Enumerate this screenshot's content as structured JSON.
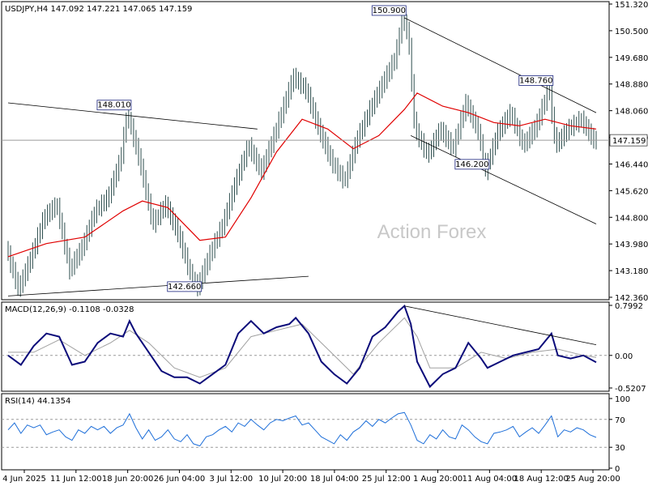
{
  "chart_data": {
    "type": "candlestick",
    "symbol": "USDJPY,H4",
    "ohlc_header": "147.092 147.221 147.065 147.159",
    "watermark": "Action Forex",
    "last_price": 147.159,
    "last_price_label": "147.159",
    "price_axis": {
      "ylim": [
        142.36,
        151.32
      ],
      "ticks": [
        "151.320",
        "150.500",
        "149.680",
        "148.880",
        "148.060",
        "147.240",
        "146.440",
        "145.620",
        "144.800",
        "143.980",
        "143.180",
        "142.360"
      ]
    },
    "x_labels": [
      "4 Jun 2025",
      "11 Jun 12:00",
      "18 Jun 20:00",
      "26 Jun 04:00",
      "3 Jul 12:00",
      "10 Jul 20:00",
      "18 Jul 04:00",
      "25 Jul 12:00",
      "1 Aug 20:00",
      "11 Aug 04:00",
      "18 Aug 12:00",
      "25 Aug 20:00"
    ],
    "price_path": [
      [
        0,
        143.9
      ],
      [
        2,
        142.6
      ],
      [
        4,
        143.6
      ],
      [
        6,
        144.8
      ],
      [
        8,
        145.2
      ],
      [
        10,
        143.2
      ],
      [
        12,
        143.9
      ],
      [
        14,
        145.0
      ],
      [
        16,
        145.4
      ],
      [
        18,
        146.6
      ],
      [
        19,
        148.01
      ],
      [
        21,
        146.5
      ],
      [
        23,
        144.6
      ],
      [
        25,
        145.2
      ],
      [
        27,
        144.3
      ],
      [
        29,
        143.0
      ],
      [
        30,
        142.66
      ],
      [
        32,
        143.7
      ],
      [
        34,
        144.6
      ],
      [
        36,
        145.9
      ],
      [
        38,
        147.0
      ],
      [
        40,
        146.2
      ],
      [
        42,
        147.3
      ],
      [
        44,
        148.5
      ],
      [
        45,
        149.1
      ],
      [
        47,
        148.7
      ],
      [
        49,
        147.5
      ],
      [
        51,
        146.5
      ],
      [
        53,
        145.9
      ],
      [
        55,
        147.2
      ],
      [
        57,
        148.1
      ],
      [
        59,
        148.9
      ],
      [
        61,
        149.7
      ],
      [
        62,
        150.9
      ],
      [
        63,
        150.4
      ],
      [
        64,
        147.5
      ],
      [
        66,
        146.7
      ],
      [
        68,
        147.5
      ],
      [
        70,
        146.9
      ],
      [
        72,
        148.3
      ],
      [
        74,
        147.4
      ],
      [
        75,
        146.2
      ],
      [
        77,
        147.4
      ],
      [
        79,
        148.0
      ],
      [
        81,
        147.0
      ],
      [
        83,
        147.6
      ],
      [
        85,
        148.76
      ],
      [
        86,
        147.0
      ],
      [
        88,
        147.5
      ],
      [
        90,
        147.8
      ],
      [
        92,
        147.159
      ]
    ],
    "ma_path": [
      [
        0,
        143.6
      ],
      [
        6,
        144.0
      ],
      [
        12,
        144.2
      ],
      [
        18,
        145.0
      ],
      [
        21,
        145.3
      ],
      [
        25,
        145.1
      ],
      [
        30,
        144.1
      ],
      [
        34,
        144.2
      ],
      [
        38,
        145.4
      ],
      [
        42,
        146.8
      ],
      [
        46,
        147.8
      ],
      [
        50,
        147.5
      ],
      [
        54,
        146.9
      ],
      [
        58,
        147.3
      ],
      [
        62,
        148.1
      ],
      [
        64,
        148.6
      ],
      [
        68,
        148.2
      ],
      [
        72,
        148.0
      ],
      [
        76,
        147.7
      ],
      [
        80,
        147.6
      ],
      [
        84,
        147.8
      ],
      [
        88,
        147.6
      ],
      [
        92,
        147.5
      ]
    ],
    "annotations": [
      {
        "label": "148.010",
        "price": 148.01,
        "i": 19
      },
      {
        "label": "142.660",
        "price": 142.66,
        "i": 30
      },
      {
        "label": "150.900",
        "price": 150.9,
        "i": 62
      },
      {
        "label": "146.200",
        "price": 146.2,
        "i": 75
      },
      {
        "label": "148.760",
        "price": 148.76,
        "i": 85
      }
    ],
    "trendlines": [
      {
        "from": [
          0,
          148.3
        ],
        "to": [
          39,
          147.5
        ]
      },
      {
        "from": [
          0,
          142.4
        ],
        "to": [
          47,
          143.0
        ]
      },
      {
        "from": [
          62,
          150.9
        ],
        "to": [
          92,
          148.0
        ]
      },
      {
        "from": [
          63,
          147.3
        ],
        "to": [
          92,
          144.6
        ]
      }
    ],
    "macd": {
      "label": "MACD(12,26,9) -0.1108 -0.0328",
      "ylim": [
        -0.5207,
        0.7992
      ],
      "ticks": [
        "0.7992",
        "0.00",
        "-0.5207"
      ],
      "main_path": [
        [
          0,
          0.0
        ],
        [
          2,
          -0.15
        ],
        [
          4,
          0.15
        ],
        [
          6,
          0.35
        ],
        [
          8,
          0.3
        ],
        [
          10,
          -0.15
        ],
        [
          12,
          -0.1
        ],
        [
          14,
          0.2
        ],
        [
          16,
          0.35
        ],
        [
          18,
          0.3
        ],
        [
          19,
          0.55
        ],
        [
          20,
          0.35
        ],
        [
          22,
          0.05
        ],
        [
          24,
          -0.25
        ],
        [
          26,
          -0.35
        ],
        [
          28,
          -0.35
        ],
        [
          30,
          -0.45
        ],
        [
          32,
          -0.3
        ],
        [
          34,
          -0.15
        ],
        [
          36,
          0.35
        ],
        [
          38,
          0.55
        ],
        [
          40,
          0.35
        ],
        [
          42,
          0.45
        ],
        [
          44,
          0.5
        ],
        [
          45,
          0.6
        ],
        [
          47,
          0.35
        ],
        [
          49,
          -0.1
        ],
        [
          51,
          -0.3
        ],
        [
          53,
          -0.45
        ],
        [
          55,
          -0.2
        ],
        [
          57,
          0.3
        ],
        [
          59,
          0.45
        ],
        [
          61,
          0.7
        ],
        [
          62,
          0.79
        ],
        [
          63,
          0.5
        ],
        [
          64,
          -0.1
        ],
        [
          66,
          -0.5
        ],
        [
          68,
          -0.3
        ],
        [
          70,
          -0.2
        ],
        [
          72,
          0.2
        ],
        [
          74,
          -0.05
        ],
        [
          75,
          -0.2
        ],
        [
          77,
          -0.1
        ],
        [
          79,
          0.0
        ],
        [
          81,
          0.05
        ],
        [
          83,
          0.1
        ],
        [
          85,
          0.35
        ],
        [
          86,
          0.0
        ],
        [
          88,
          -0.05
        ],
        [
          90,
          0.0
        ],
        [
          92,
          -0.1108
        ]
      ],
      "signal_path": [
        [
          0,
          0.05
        ],
        [
          4,
          0.05
        ],
        [
          8,
          0.25
        ],
        [
          12,
          0.0
        ],
        [
          16,
          0.2
        ],
        [
          19,
          0.4
        ],
        [
          22,
          0.2
        ],
        [
          26,
          -0.2
        ],
        [
          30,
          -0.35
        ],
        [
          34,
          -0.2
        ],
        [
          38,
          0.3
        ],
        [
          42,
          0.4
        ],
        [
          46,
          0.5
        ],
        [
          50,
          0.1
        ],
        [
          54,
          -0.3
        ],
        [
          58,
          0.2
        ],
        [
          62,
          0.6
        ],
        [
          64,
          0.3
        ],
        [
          66,
          -0.2
        ],
        [
          70,
          -0.2
        ],
        [
          74,
          0.05
        ],
        [
          78,
          -0.05
        ],
        [
          82,
          0.05
        ],
        [
          86,
          0.1
        ],
        [
          90,
          0.0
        ],
        [
          92,
          -0.0328
        ]
      ],
      "trendline": {
        "from": [
          62,
          0.79
        ],
        "to": [
          92,
          0.17
        ]
      }
    },
    "rsi": {
      "label": "RSI(14) 44.1354",
      "ylim": [
        0,
        100
      ],
      "ticks": [
        "100",
        "70",
        "30",
        "0"
      ],
      "levels": [
        70,
        30
      ],
      "path": [
        [
          0,
          55
        ],
        [
          1,
          65
        ],
        [
          2,
          50
        ],
        [
          3,
          62
        ],
        [
          4,
          58
        ],
        [
          5,
          62
        ],
        [
          6,
          48
        ],
        [
          7,
          52
        ],
        [
          8,
          55
        ],
        [
          9,
          45
        ],
        [
          10,
          40
        ],
        [
          11,
          55
        ],
        [
          12,
          50
        ],
        [
          13,
          60
        ],
        [
          14,
          55
        ],
        [
          15,
          60
        ],
        [
          16,
          50
        ],
        [
          17,
          58
        ],
        [
          18,
          62
        ],
        [
          19,
          78
        ],
        [
          20,
          58
        ],
        [
          21,
          42
        ],
        [
          22,
          55
        ],
        [
          23,
          40
        ],
        [
          24,
          45
        ],
        [
          25,
          55
        ],
        [
          26,
          42
        ],
        [
          27,
          38
        ],
        [
          28,
          48
        ],
        [
          29,
          35
        ],
        [
          30,
          32
        ],
        [
          31,
          45
        ],
        [
          32,
          48
        ],
        [
          33,
          55
        ],
        [
          34,
          60
        ],
        [
          35,
          52
        ],
        [
          36,
          65
        ],
        [
          37,
          60
        ],
        [
          38,
          70
        ],
        [
          39,
          62
        ],
        [
          40,
          55
        ],
        [
          41,
          65
        ],
        [
          42,
          70
        ],
        [
          43,
          68
        ],
        [
          44,
          72
        ],
        [
          45,
          75
        ],
        [
          46,
          62
        ],
        [
          47,
          65
        ],
        [
          48,
          55
        ],
        [
          49,
          45
        ],
        [
          50,
          40
        ],
        [
          51,
          35
        ],
        [
          52,
          48
        ],
        [
          53,
          40
        ],
        [
          54,
          52
        ],
        [
          55,
          58
        ],
        [
          56,
          68
        ],
        [
          57,
          60
        ],
        [
          58,
          70
        ],
        [
          59,
          65
        ],
        [
          60,
          72
        ],
        [
          61,
          78
        ],
        [
          62,
          80
        ],
        [
          63,
          62
        ],
        [
          64,
          40
        ],
        [
          65,
          35
        ],
        [
          66,
          48
        ],
        [
          67,
          42
        ],
        [
          68,
          55
        ],
        [
          69,
          45
        ],
        [
          70,
          42
        ],
        [
          71,
          62
        ],
        [
          72,
          55
        ],
        [
          73,
          45
        ],
        [
          74,
          38
        ],
        [
          75,
          35
        ],
        [
          76,
          50
        ],
        [
          77,
          52
        ],
        [
          78,
          55
        ],
        [
          79,
          60
        ],
        [
          80,
          45
        ],
        [
          81,
          52
        ],
        [
          82,
          58
        ],
        [
          83,
          50
        ],
        [
          84,
          62
        ],
        [
          85,
          75
        ],
        [
          86,
          45
        ],
        [
          87,
          55
        ],
        [
          88,
          52
        ],
        [
          89,
          58
        ],
        [
          90,
          55
        ],
        [
          91,
          48
        ],
        [
          92,
          44.1354
        ]
      ]
    }
  },
  "colors": {
    "candle": "#2f4f4f",
    "ma": "#e00000",
    "macd_main": "#0b0b7a",
    "macd_signal": "#a0a0a0",
    "rsi": "#1e6fd9",
    "grid": "#000000",
    "level": "#9a9a9a"
  }
}
